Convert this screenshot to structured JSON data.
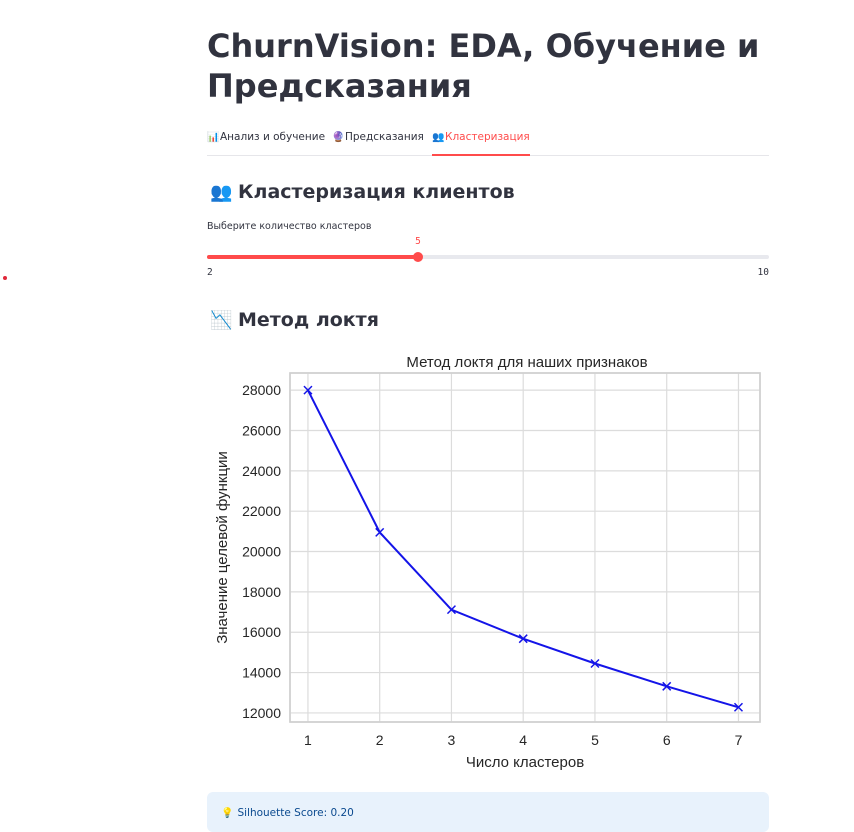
{
  "page": {
    "title": "ChurnVision: EDA, Обучение и Предсказания"
  },
  "tabs": [
    {
      "icon": "📊",
      "label": "Анализ и обучение"
    },
    {
      "icon": "🔮",
      "label": "Предсказания"
    },
    {
      "icon": "👥",
      "label": "Кластеризация"
    }
  ],
  "active_tab": 2,
  "clustering": {
    "icon": "👥",
    "heading": "Кластеризация клиентов",
    "slider": {
      "label": "Выберите количество кластеров",
      "min": 2,
      "max": 10,
      "value": 5,
      "min_label": "2",
      "max_label": "10",
      "value_label": "5"
    }
  },
  "elbow": {
    "icon": "📉",
    "heading": "Метод локтя"
  },
  "chart_data": {
    "type": "line",
    "title": "Метод локтя для наших признаков",
    "xlabel": "Число кластеров",
    "ylabel": "Значение целевой функции",
    "x": [
      1,
      2,
      3,
      4,
      5,
      6,
      7
    ],
    "series": [
      {
        "values": [
          28000,
          20950,
          17120,
          15680,
          14450,
          13320,
          12280
        ]
      }
    ],
    "xlim": [
      0.75,
      7.3
    ],
    "ylim": [
      11550,
      28850
    ],
    "xticks": [
      1,
      2,
      3,
      4,
      5,
      6,
      7
    ],
    "yticks": [
      12000,
      14000,
      16000,
      18000,
      20000,
      22000,
      24000,
      26000,
      28000
    ],
    "marker": "x",
    "grid": true,
    "line_color": "#1414e8"
  },
  "silhouette": {
    "icon": "💡",
    "text": "Silhouette Score: 0.20"
  }
}
